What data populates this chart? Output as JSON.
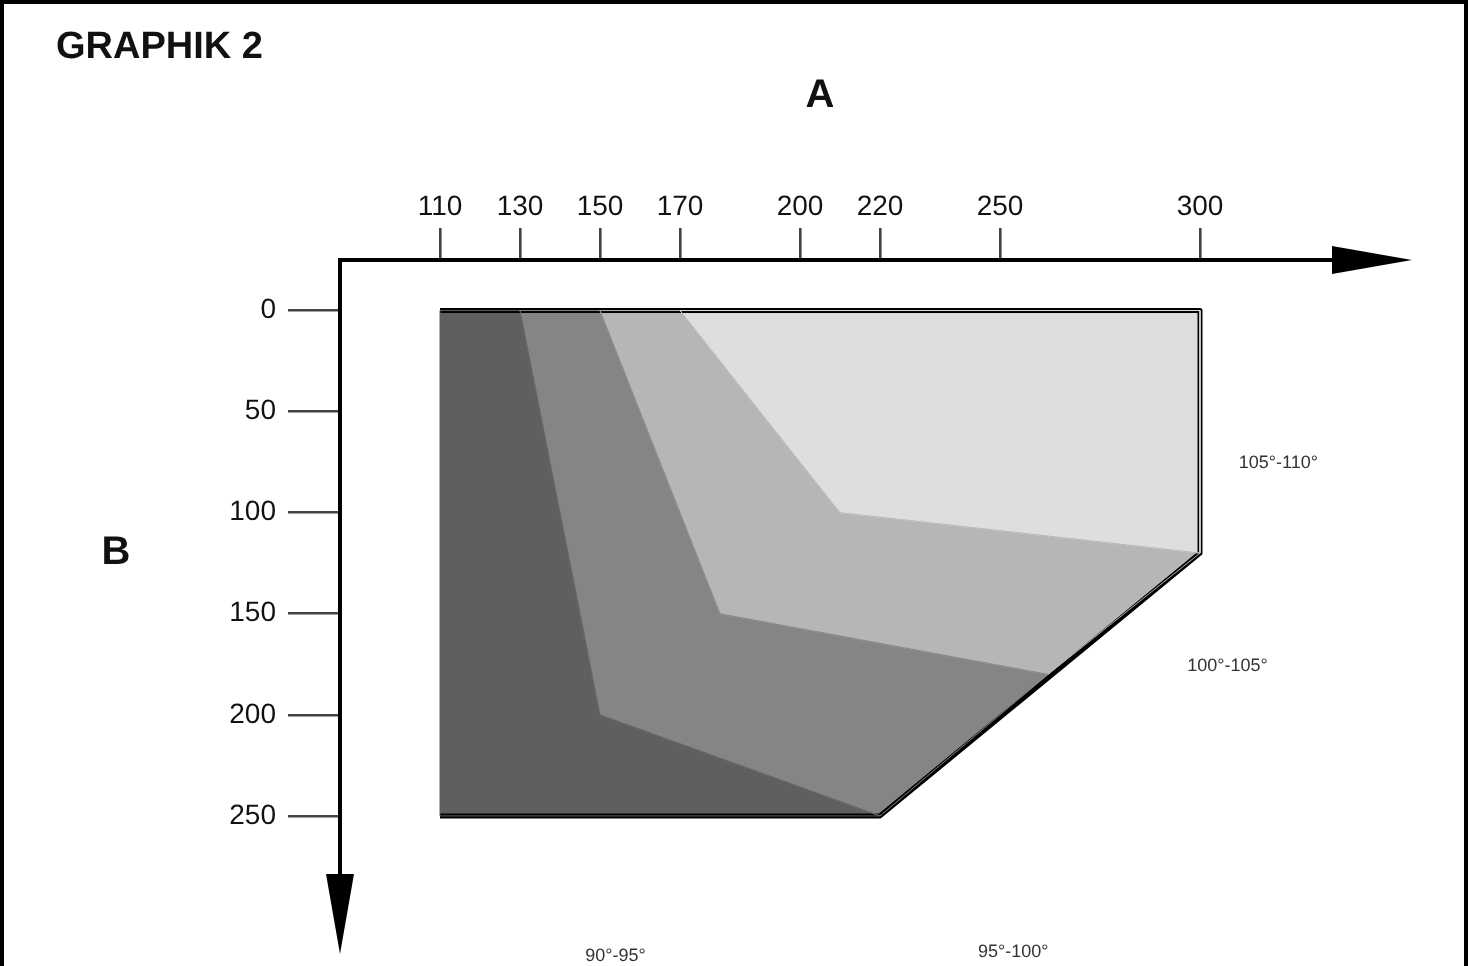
{
  "chart_data": {
    "type": "area",
    "title": "GRAPHIK 2",
    "xlabel": "A",
    "ylabel": "B",
    "xlim": [
      85,
      340
    ],
    "ylim": [
      310,
      -25
    ],
    "xticks": [
      110,
      130,
      150,
      170,
      200,
      220,
      250,
      300
    ],
    "yticks": [
      0,
      50,
      100,
      150,
      200,
      250
    ],
    "grid": false,
    "legend": false,
    "series": [
      {
        "name": "90°-95°",
        "color": "#5f5f5f",
        "x": [
          110,
          130,
          150,
          220,
          110
        ],
        "values": [
          0,
          0,
          200,
          250,
          250
        ]
      },
      {
        "name": "95°-100°",
        "color": "#858585",
        "x": [
          130,
          150,
          180,
          262,
          220,
          150
        ],
        "values": [
          0,
          0,
          150,
          180,
          250,
          200
        ]
      },
      {
        "name": "100°-105°",
        "color": "#b6b6b6",
        "x": [
          150,
          170,
          210,
          300,
          262,
          180
        ],
        "values": [
          0,
          0,
          100,
          120,
          180,
          150
        ]
      },
      {
        "name": "105°-110°",
        "color": "#dedede",
        "x": [
          170,
          300,
          300,
          210
        ],
        "values": [
          0,
          0,
          120,
          100
        ]
      },
      {
        "type": "line",
        "color": "#000000",
        "x": [
          110,
          300,
          300,
          220,
          110
        ],
        "values": [
          0,
          0,
          120,
          250,
          250
        ]
      }
    ]
  }
}
